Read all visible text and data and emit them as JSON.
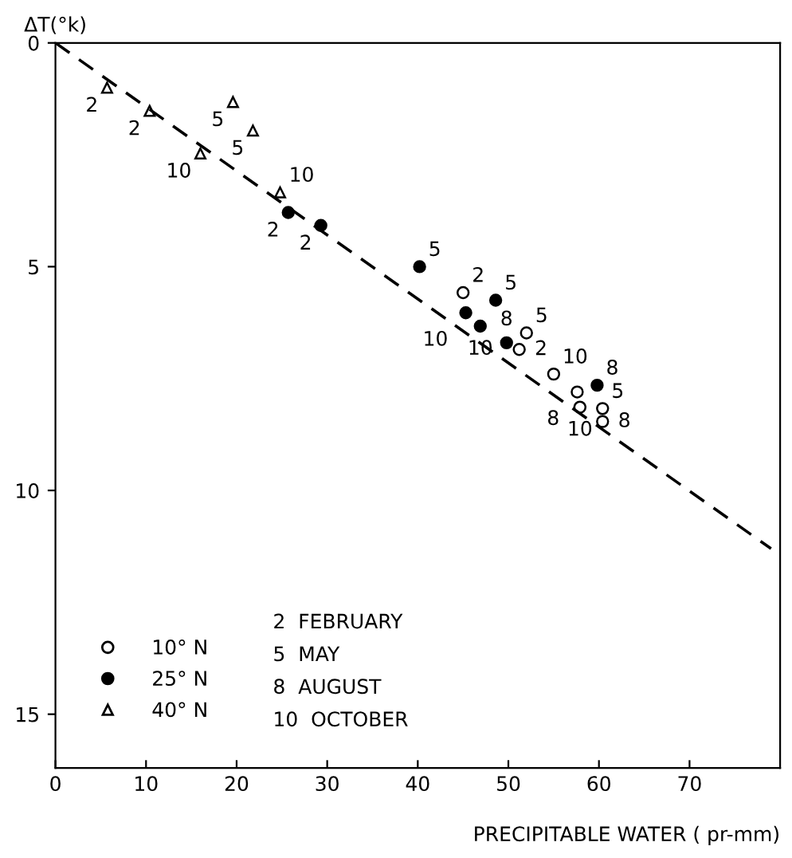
{
  "chart_data": {
    "type": "scatter",
    "xlabel": "PRECIPITABLE WATER ( pr-mm)",
    "ylabel": "ΔT(°k)",
    "xlim": [
      0,
      80
    ],
    "ylim": [
      16.2,
      0
    ],
    "xticks": [
      0,
      10,
      20,
      30,
      40,
      50,
      60,
      70
    ],
    "yticks": [
      0,
      5,
      10,
      15
    ],
    "grid": false,
    "legend": "bottom left",
    "series": [
      {
        "name": "10° N",
        "color": "#ffffff",
        "marker": "circle",
        "x": [
          45.0,
          52.0,
          51.2,
          55.0,
          57.6,
          57.9,
          60.4,
          60.4
        ],
        "values": [
          5.58,
          6.48,
          6.85,
          7.4,
          7.8,
          8.14,
          8.17,
          8.46
        ]
      },
      {
        "name": "25° N",
        "color": "#000000",
        "marker": "circle",
        "x": [
          25.7,
          29.3,
          40.2,
          48.6,
          45.3,
          46.9,
          49.8,
          59.8
        ],
        "values": [
          3.79,
          4.08,
          5.0,
          5.75,
          6.03,
          6.33,
          6.7,
          7.65
        ]
      },
      {
        "name": "40° N",
        "color": "#ffffff",
        "marker": "triangle",
        "x": [
          5.7,
          10.4,
          16.0,
          19.6,
          21.8,
          24.8
        ],
        "values": [
          1.0,
          1.52,
          2.47,
          1.32,
          1.96,
          3.34
        ]
      },
      {
        "type": "line",
        "color": "#000000",
        "line_style": "dashed",
        "marker": "none",
        "x": [
          0,
          79
        ],
        "values": [
          0,
          11.3
        ]
      }
    ],
    "annotations": [
      "2  FEBRUARY",
      "5  MAY",
      "8  AUGUST",
      "10  OCTOBER",
      {
        "text": "2",
        "x": 45.0,
        "y": 5.58
      },
      {
        "text": "5",
        "x": 52.0,
        "y": 6.48
      },
      {
        "text": "2",
        "x": 51.2,
        "y": 6.85
      },
      {
        "text": "10",
        "x": 55.0,
        "y": 7.4
      },
      {
        "text": "8",
        "x": 57.6,
        "y": 7.8
      },
      {
        "text": "10",
        "x": 57.9,
        "y": 8.14
      },
      {
        "text": "5",
        "x": 60.4,
        "y": 8.17
      },
      {
        "text": "8",
        "x": 60.4,
        "y": 8.46
      },
      {
        "text": "2",
        "x": 25.7,
        "y": 3.79
      },
      {
        "text": "2",
        "x": 29.3,
        "y": 4.08
      },
      {
        "text": "5",
        "x": 40.2,
        "y": 5.0
      },
      {
        "text": "5",
        "x": 48.6,
        "y": 5.75
      },
      {
        "text": "10",
        "x": 45.3,
        "y": 6.03
      },
      {
        "text": "10",
        "x": 46.9,
        "y": 6.33
      },
      {
        "text": "8",
        "x": 49.8,
        "y": 6.7
      },
      {
        "text": "8",
        "x": 59.8,
        "y": 7.65
      },
      {
        "text": "2",
        "x": 5.7,
        "y": 1.0
      },
      {
        "text": "2",
        "x": 10.4,
        "y": 1.52
      },
      {
        "text": "10",
        "x": 16.0,
        "y": 2.47
      },
      {
        "text": "5",
        "x": 19.6,
        "y": 1.32
      },
      {
        "text": "5",
        "x": 21.8,
        "y": 1.96
      },
      {
        "text": "10",
        "x": 24.8,
        "y": 3.34
      }
    ]
  }
}
